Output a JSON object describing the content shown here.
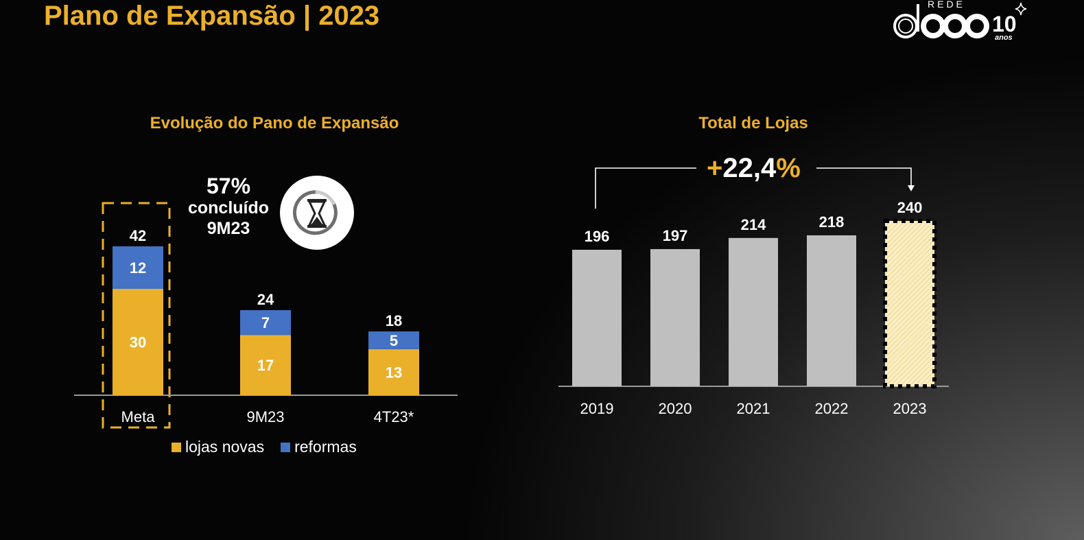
{
  "slide": {
    "title": "Plano de Expansão | 2023",
    "logo": {
      "brand_small": "REDE",
      "brand_large": "d1000",
      "anniversary_number": "10",
      "anniversary_label": "anos",
      "icon": "sparkle-star-icon"
    }
  },
  "colors": {
    "accent_gold": "#ebb02a",
    "lojas_novas": "#ebb02a",
    "reformas": "#4472c4",
    "total_bars": "#bfbfbf",
    "projected_fill": "#fbeec4",
    "axis": "#9a9a9a"
  },
  "completion_callout": {
    "percent": "57%",
    "label": "concluído",
    "period": "9M23",
    "icon": "hourglass-icon"
  },
  "growth_callout": {
    "sign": "+",
    "number": "22,4",
    "percent_sign": "%",
    "from": "2019",
    "to": "2023"
  },
  "chart_data": [
    {
      "type": "bar",
      "stacked": true,
      "title": "Evolução do Pano de Expansão",
      "categories": [
        "Meta",
        "9M23",
        "4T23*"
      ],
      "series": [
        {
          "name": "lojas novas",
          "values": [
            30,
            17,
            13
          ]
        },
        {
          "name": "reformas",
          "values": [
            12,
            7,
            5
          ]
        }
      ],
      "totals": [
        42,
        24,
        18
      ],
      "highlighted_category": "Meta",
      "legend": "bottom",
      "grid": false,
      "xlabel": "",
      "ylabel": "",
      "ylim": [
        0,
        42
      ]
    },
    {
      "type": "bar",
      "title": "Total de Lojas",
      "categories": [
        "2019",
        "2020",
        "2021",
        "2022",
        "2023"
      ],
      "values": [
        196,
        197,
        214,
        218,
        240
      ],
      "projected_category": "2023",
      "annotation": "+22,4%",
      "grid": false,
      "xlabel": "",
      "ylabel": "",
      "ylim": [
        0,
        240
      ]
    }
  ]
}
